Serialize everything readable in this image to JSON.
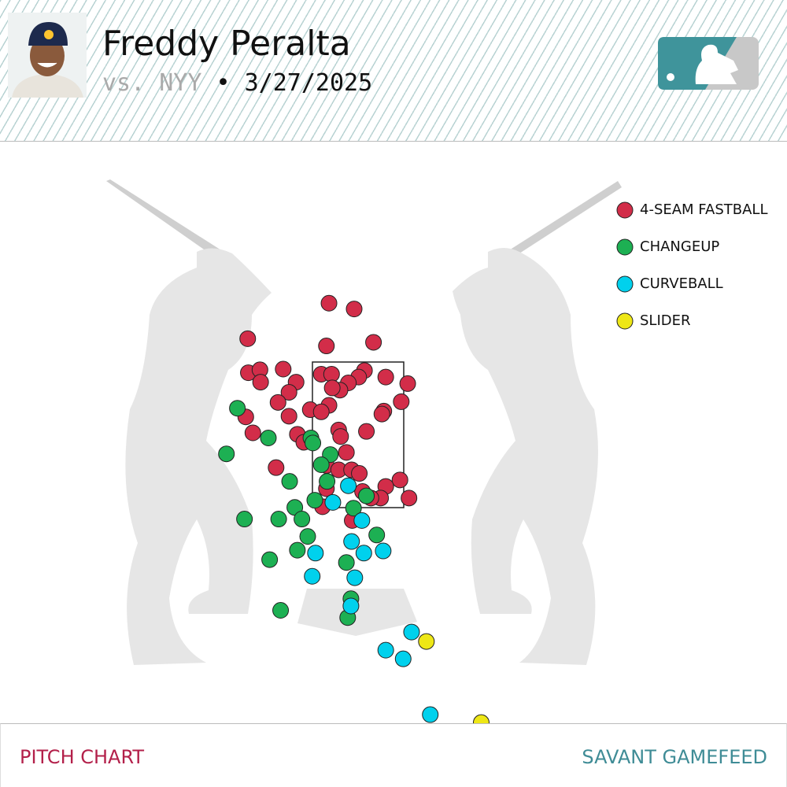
{
  "chart_data": {
    "type": "scatter",
    "title": "Freddy Peralta",
    "subtitle": {
      "opponent": "vs. NYY",
      "date": "• 3/27/2025"
    },
    "xlim": [
      -5.55,
      6.65
    ],
    "ylim": [
      -1.49,
      6.55
    ],
    "series": [
      {
        "name": "4-SEAM FASTBALL",
        "color": "#d22d49",
        "x": [
          -0.45,
          -0.06,
          -1.71,
          -0.49,
          0.24,
          -1.7,
          -1.52,
          -1.16,
          -1.51,
          -0.96,
          -0.57,
          -0.41,
          0.1,
          0.01,
          0.43,
          0.77,
          -0.15,
          -0.28,
          -0.4,
          -1.07,
          -1.24,
          -0.45,
          -0.74,
          -0.57,
          0.67,
          0.4,
          0.37,
          -1.07,
          -1.74,
          -0.3,
          -0.27,
          0.13,
          -1.63,
          -0.94,
          -0.84,
          -0.18,
          -1.27,
          -0.49,
          -0.3,
          -0.1,
          0.02,
          0.65,
          0.43,
          0.07,
          -0.49,
          0.35,
          0.79,
          0.2,
          -0.55,
          -0.09
        ],
        "y": [
          4.32,
          4.24,
          3.83,
          3.73,
          3.78,
          3.36,
          3.4,
          3.41,
          3.23,
          3.23,
          3.34,
          3.34,
          3.39,
          3.3,
          3.3,
          3.21,
          3.22,
          3.12,
          3.15,
          3.09,
          2.95,
          2.91,
          2.85,
          2.82,
          2.96,
          2.83,
          2.79,
          2.76,
          2.75,
          2.57,
          2.48,
          2.55,
          2.53,
          2.51,
          2.4,
          2.26,
          2.05,
          2.08,
          2.02,
          2.02,
          1.97,
          1.88,
          1.79,
          1.72,
          1.76,
          1.63,
          1.63,
          1.63,
          1.51,
          1.32
        ]
      },
      {
        "name": "CHANGEUP",
        "color": "#1db053",
        "x": [
          -1.87,
          -1.39,
          -2.04,
          -0.73,
          -0.7,
          -0.43,
          -0.57,
          -1.06,
          -0.48,
          -0.67,
          -0.98,
          -0.07,
          0.13,
          -1.76,
          -1.23,
          -0.87,
          -0.78,
          0.29,
          -0.94,
          -1.37,
          -0.18,
          -0.11,
          -1.2,
          -0.16
        ],
        "y": [
          2.87,
          2.46,
          2.24,
          2.46,
          2.39,
          2.23,
          2.09,
          1.86,
          1.86,
          1.6,
          1.5,
          1.49,
          1.66,
          1.34,
          1.34,
          1.34,
          1.1,
          1.12,
          0.91,
          0.78,
          0.74,
          0.24,
          0.08,
          -0.02
        ]
      },
      {
        "name": "CURVEBALL",
        "color": "#00d1ed",
        "x": [
          -0.15,
          -0.39,
          0.06,
          -0.1,
          -0.66,
          0.09,
          0.39,
          -0.71,
          -0.05,
          -0.11,
          0.83,
          0.43,
          0.7,
          1.12
        ],
        "y": [
          1.8,
          1.57,
          1.32,
          1.03,
          0.87,
          0.87,
          0.9,
          0.55,
          0.53,
          0.14,
          -0.22,
          -0.47,
          -0.59,
          -1.36
        ]
      },
      {
        "name": "SLIDER",
        "color": "#eee716",
        "x": [
          1.06,
          1.91
        ],
        "y": [
          -0.35,
          -1.47
        ]
      }
    ]
  },
  "footer": {
    "left": "PITCH CHART",
    "right": "SAVANT GAMEFEED"
  }
}
